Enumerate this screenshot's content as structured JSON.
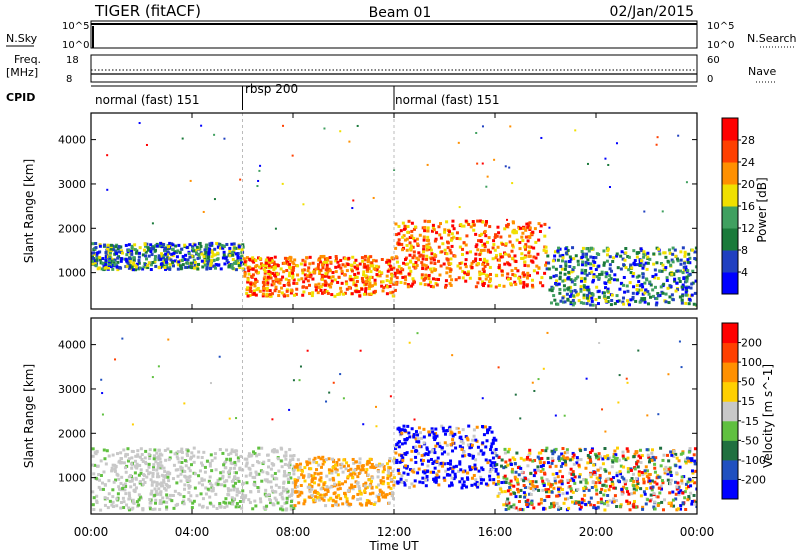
{
  "header": {
    "radar": "TIGER (fitACF)",
    "beam": "Beam 01",
    "date": "02/Jan/2015"
  },
  "housekeeping": {
    "nsky_label": "N.Sky",
    "nsearch_label": "N.Search",
    "nsky_ticks": [
      "10^5",
      "10^0"
    ],
    "nsearch_ticks": [
      "10^5",
      "10^0"
    ],
    "freq_label": "Freq.",
    "freq_unit": "[MHz]",
    "freq_ticks": [
      "18",
      "8"
    ],
    "nave_label": "Nave",
    "nave_ticks": [
      "60",
      "0"
    ],
    "cpid_label": "CPID",
    "cpid_segments": [
      {
        "label": "normal (fast) 151",
        "start_h": 0,
        "end_h": 6
      },
      {
        "label": "rbsp 200",
        "start_h": 6,
        "end_h": 12
      },
      {
        "label": "normal (fast) 151",
        "start_h": 12,
        "end_h": 24
      }
    ]
  },
  "chart_data": [
    {
      "type": "heatmap",
      "title": "Power",
      "ylabel": "Slant Range [km]",
      "ylim": [
        180,
        4600
      ],
      "y_ticks": [
        "4000",
        "3000",
        "2000",
        "1000"
      ],
      "colorbar_label": "Power [dB]",
      "colorbar_ticks": [
        "28",
        "24",
        "20",
        "16",
        "12",
        "8",
        "4"
      ],
      "colorbar_colors": [
        "#0000ff",
        "#2040c0",
        "#1a7a3a",
        "#40a060",
        "#f0e000",
        "#ff9000",
        "#ff4000",
        "#ff0000"
      ],
      "xlim_h": [
        0,
        24
      ],
      "bands": [
        {
          "t0": 0,
          "t1": 6,
          "r0": 1100,
          "r1": 1700,
          "level": "mid"
        },
        {
          "t0": 6,
          "t1": 12,
          "r0": 500,
          "r1": 1400,
          "level": "high"
        },
        {
          "t0": 12,
          "t1": 18,
          "r0": 700,
          "r1": 2200,
          "level": "high"
        },
        {
          "t0": 18,
          "t1": 24,
          "r0": 300,
          "r1": 1600,
          "level": "mid"
        }
      ]
    },
    {
      "type": "heatmap",
      "title": "Velocity",
      "xlabel": "Time UT",
      "ylabel": "Slant Range [km]",
      "ylim": [
        180,
        4600
      ],
      "y_ticks": [
        "4000",
        "3000",
        "2000",
        "1000"
      ],
      "x_ticks": [
        "00:00",
        "04:00",
        "08:00",
        "12:00",
        "16:00",
        "20:00",
        "00:00"
      ],
      "colorbar_label": "Velocity [m s^-1]",
      "colorbar_ticks": [
        "200",
        "100",
        "50",
        "15",
        "-15",
        "-50",
        "-100",
        "-200"
      ],
      "colorbar_colors": [
        "#0000ff",
        "#2050c0",
        "#207040",
        "#60c040",
        "#c8c8c8",
        "#ffd000",
        "#ff9000",
        "#ff4000",
        "#ff0000"
      ],
      "xlim_h": [
        0,
        24
      ],
      "bands": [
        {
          "t0": 0,
          "t1": 8,
          "r0": 300,
          "r1": 1700,
          "level": "gray"
        },
        {
          "t0": 8,
          "t1": 12,
          "r0": 400,
          "r1": 1500,
          "level": "orange"
        },
        {
          "t0": 12,
          "t1": 16,
          "r0": 800,
          "r1": 2200,
          "level": "blue"
        },
        {
          "t0": 16,
          "t1": 24,
          "r0": 300,
          "r1": 1700,
          "level": "mixed"
        }
      ]
    }
  ]
}
